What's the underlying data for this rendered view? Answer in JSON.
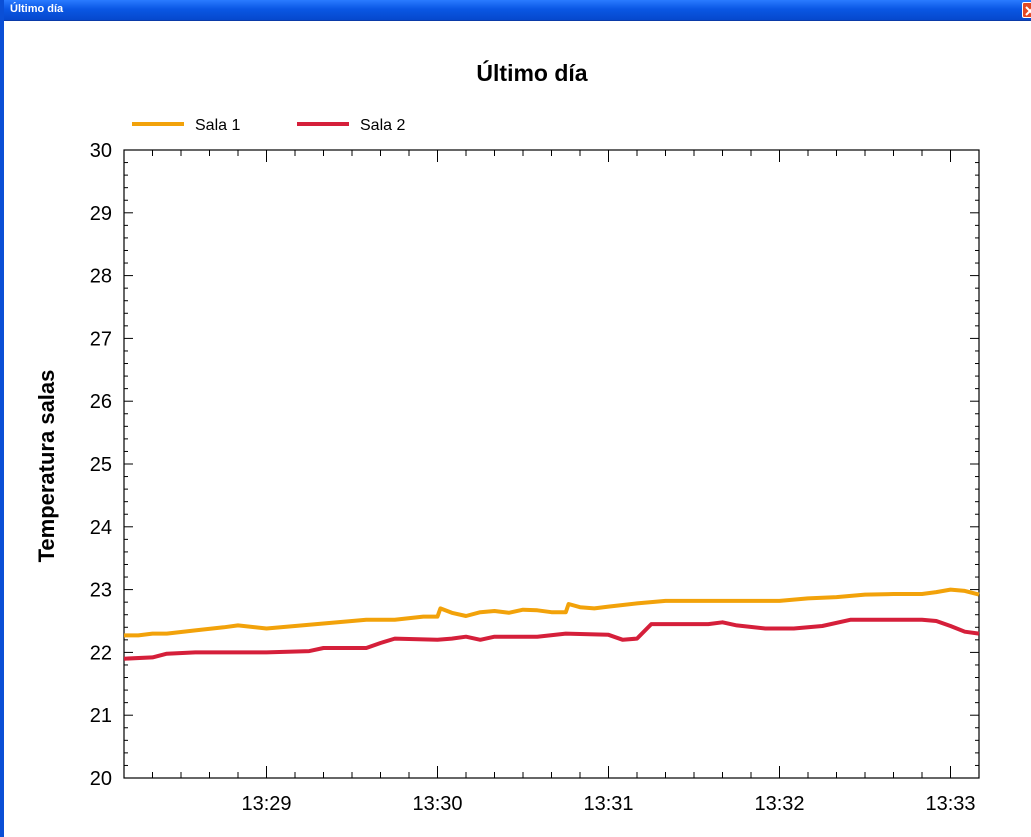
{
  "window": {
    "title": "Último día",
    "close_icon": "close-icon"
  },
  "chart_data": {
    "type": "line",
    "title": "Último día",
    "xlabel": "",
    "ylabel": "Temperatura salas",
    "ylim": [
      20,
      30
    ],
    "xlim": [
      "13:28:10",
      "13:33:10"
    ],
    "y_ticks": [
      "20",
      "21",
      "22",
      "23",
      "24",
      "25",
      "26",
      "27",
      "28",
      "29",
      "30"
    ],
    "x_ticks": [
      "13:29",
      "13:30",
      "13:31",
      "13:32",
      "13:33"
    ],
    "grid": false,
    "legend_position": "top-left",
    "series": [
      {
        "name": "Sala 1",
        "color": "#f2a20a",
        "x": [
          "13:28:10",
          "13:28:15",
          "13:28:20",
          "13:28:25",
          "13:28:35",
          "13:28:45",
          "13:28:50",
          "13:29:00",
          "13:29:10",
          "13:29:20",
          "13:29:35",
          "13:29:45",
          "13:29:55",
          "13:30:00",
          "13:30:01",
          "13:30:05",
          "13:30:10",
          "13:30:15",
          "13:30:20",
          "13:30:25",
          "13:30:30",
          "13:30:35",
          "13:30:40",
          "13:30:45",
          "13:30:46",
          "13:30:50",
          "13:30:55",
          "13:31:00",
          "13:31:10",
          "13:31:20",
          "13:31:40",
          "13:32:00",
          "13:32:10",
          "13:32:20",
          "13:32:30",
          "13:32:40",
          "13:32:50",
          "13:32:55",
          "13:33:00",
          "13:33:05",
          "13:33:10"
        ],
        "y": [
          22.27,
          22.27,
          22.3,
          22.3,
          22.35,
          22.4,
          22.43,
          22.38,
          22.42,
          22.46,
          22.52,
          22.52,
          22.57,
          22.57,
          22.7,
          22.63,
          22.58,
          22.64,
          22.66,
          22.63,
          22.68,
          22.67,
          22.64,
          22.64,
          22.77,
          22.72,
          22.7,
          22.73,
          22.78,
          22.82,
          22.82,
          22.82,
          22.86,
          22.88,
          22.92,
          22.93,
          22.93,
          22.96,
          23.0,
          22.98,
          22.92
        ]
      },
      {
        "name": "Sala 2",
        "color": "#d51f3a",
        "x": [
          "13:28:10",
          "13:28:20",
          "13:28:25",
          "13:28:35",
          "13:28:50",
          "13:29:00",
          "13:29:15",
          "13:29:20",
          "13:29:35",
          "13:29:40",
          "13:29:45",
          "13:30:00",
          "13:30:05",
          "13:30:10",
          "13:30:15",
          "13:30:20",
          "13:30:35",
          "13:30:45",
          "13:31:00",
          "13:31:05",
          "13:31:10",
          "13:31:15",
          "13:31:25",
          "13:31:35",
          "13:31:40",
          "13:31:45",
          "13:31:55",
          "13:32:05",
          "13:32:15",
          "13:32:25",
          "13:32:50",
          "13:32:55",
          "13:33:00",
          "13:33:05",
          "13:33:10"
        ],
        "y": [
          21.9,
          21.92,
          21.98,
          22.0,
          22.0,
          22.0,
          22.02,
          22.07,
          22.07,
          22.15,
          22.22,
          22.2,
          22.22,
          22.25,
          22.2,
          22.25,
          22.25,
          22.3,
          22.28,
          22.2,
          22.22,
          22.45,
          22.45,
          22.45,
          22.48,
          22.43,
          22.38,
          22.38,
          22.42,
          22.52,
          22.52,
          22.5,
          22.42,
          22.33,
          22.3
        ]
      }
    ]
  }
}
